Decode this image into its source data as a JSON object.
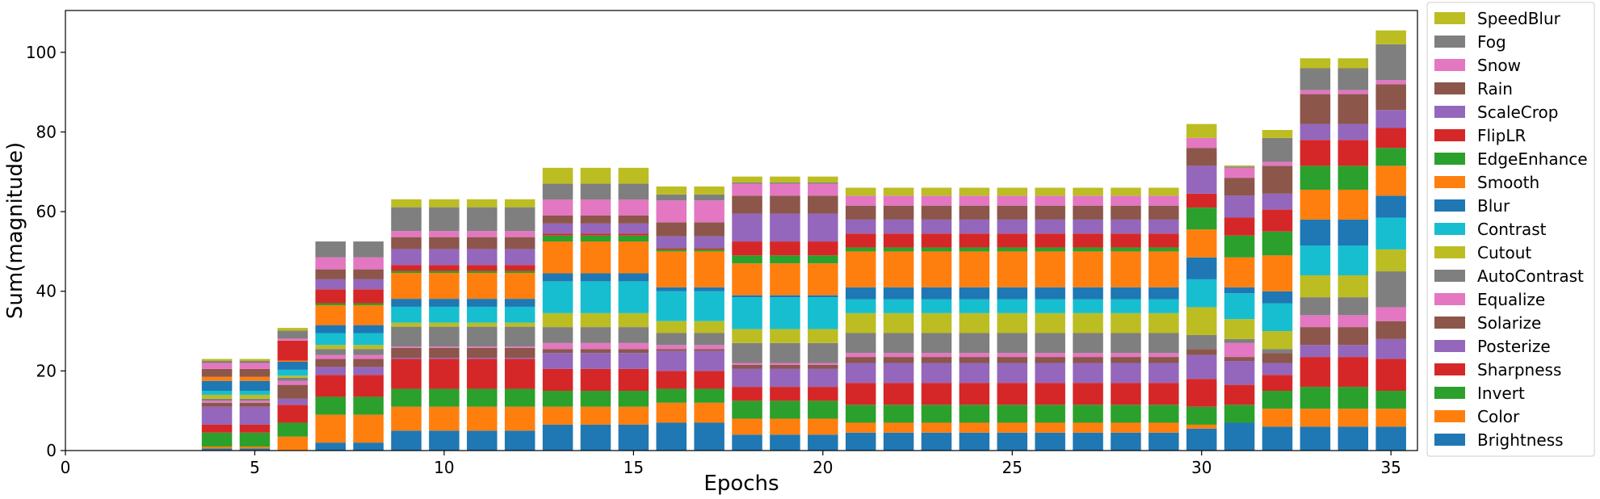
{
  "chart_data": {
    "type": "bar",
    "stacked": true,
    "xlabel": "Epochs",
    "ylabel": "Sum(magnitude)",
    "xlim": [
      0,
      35.7
    ],
    "ylim": [
      0,
      110.5
    ],
    "xticks": [
      0,
      5,
      10,
      15,
      20,
      25,
      30,
      35
    ],
    "yticks": [
      0,
      20,
      40,
      60,
      80,
      100
    ],
    "grid": false,
    "legend_position": "right",
    "x": [
      4,
      5,
      6,
      7,
      8,
      9,
      10,
      11,
      12,
      13,
      14,
      15,
      16,
      17,
      18,
      19,
      20,
      21,
      22,
      23,
      24,
      25,
      26,
      27,
      28,
      29,
      30,
      31,
      32,
      33,
      34,
      35
    ],
    "series": [
      {
        "name": "Brightness",
        "color": "#1f77b4",
        "values": [
          0.5,
          0.5,
          0,
          2,
          2,
          5,
          5,
          5,
          5,
          6.5,
          6.5,
          6.5,
          7,
          7,
          4,
          4,
          4,
          4.5,
          4.5,
          4.5,
          4.5,
          4.5,
          4.5,
          4.5,
          4.5,
          4.5,
          5.5,
          7,
          6,
          6,
          6,
          6
        ]
      },
      {
        "name": "Color",
        "color": "#ff7f0e",
        "values": [
          0.5,
          0.5,
          3.5,
          7,
          7,
          6,
          6,
          6,
          6,
          4.5,
          4.5,
          4.5,
          5,
          5,
          4,
          4,
          4,
          2.5,
          2.5,
          2.5,
          2.5,
          2.5,
          2.5,
          2.5,
          2.5,
          2.5,
          1,
          0,
          4.5,
          4.5,
          4.5,
          4.5
        ]
      },
      {
        "name": "Invert",
        "color": "#2ca02c",
        "values": [
          3.5,
          3.5,
          3.5,
          4.5,
          4.5,
          4.5,
          4.5,
          4.5,
          4.5,
          4,
          4,
          4,
          3.5,
          3.5,
          4.5,
          4.5,
          4.5,
          4.5,
          4.5,
          4.5,
          4.5,
          4.5,
          4.5,
          4.5,
          4.5,
          4.5,
          4.5,
          4.5,
          4.5,
          5.5,
          5.5,
          4.5
        ]
      },
      {
        "name": "Sharpness",
        "color": "#d62728",
        "values": [
          2,
          2,
          4.5,
          5.5,
          5.5,
          7.5,
          7.5,
          7.5,
          7.5,
          5.5,
          5.5,
          5.5,
          4.5,
          4.5,
          3.5,
          3.5,
          3.5,
          5.5,
          5.5,
          5.5,
          5.5,
          5.5,
          5.5,
          5.5,
          5.5,
          5.5,
          7,
          5,
          4,
          7.5,
          7.5,
          8
        ]
      },
      {
        "name": "Posterize",
        "color": "#9467bd",
        "values": [
          4.5,
          4.5,
          1.5,
          2,
          2,
          0.3,
          0.3,
          0.3,
          0.3,
          4,
          4,
          4,
          5,
          5,
          4.5,
          4.5,
          4.5,
          5,
          5,
          5,
          5,
          5,
          5,
          5,
          5,
          5,
          6,
          6,
          3,
          3,
          3,
          5
        ]
      },
      {
        "name": "Solarize",
        "color": "#8c564b",
        "values": [
          1,
          1,
          3.5,
          2,
          2,
          2.5,
          2.5,
          2.5,
          2.5,
          1,
          1,
          1,
          0.5,
          0.5,
          1,
          1,
          1,
          1.5,
          1.5,
          1.5,
          1.5,
          1.5,
          1.5,
          1.5,
          1.5,
          1.5,
          1.5,
          1,
          2.5,
          4.5,
          4.5,
          4.5
        ]
      },
      {
        "name": "Equalize",
        "color": "#e377c2",
        "values": [
          0.5,
          0.5,
          1,
          1,
          1,
          0.3,
          0.3,
          0.3,
          0.3,
          1.5,
          1.5,
          1.5,
          1,
          1,
          0.5,
          0.5,
          0.5,
          1,
          1,
          1,
          1,
          1,
          1,
          1,
          1,
          1,
          0,
          3.5,
          0,
          3,
          3,
          3.5
        ]
      },
      {
        "name": "AutoContrast",
        "color": "#7f7f7f",
        "values": [
          0.5,
          0.5,
          0.8,
          1.5,
          1.5,
          5,
          5,
          5,
          5,
          4,
          4,
          4,
          3,
          3,
          5,
          5,
          5,
          5,
          5,
          5,
          5,
          5,
          5,
          5,
          5,
          5,
          3.5,
          1,
          1,
          4.5,
          4.5,
          9
        ]
      },
      {
        "name": "Cutout",
        "color": "#bcbd22",
        "values": [
          1,
          1,
          0.5,
          1,
          1,
          1,
          1,
          1,
          1,
          3.5,
          3.5,
          3.5,
          3,
          3,
          3.5,
          3.5,
          3.5,
          5,
          5,
          5,
          5,
          5,
          5,
          5,
          5,
          5,
          7,
          5,
          4.5,
          5.5,
          5.5,
          5.5
        ]
      },
      {
        "name": "Contrast",
        "color": "#17becf",
        "values": [
          1,
          1,
          1.5,
          3,
          3,
          4,
          4,
          4,
          4,
          8,
          8,
          8,
          7.5,
          7.5,
          8,
          8,
          8,
          3.5,
          3.5,
          3.5,
          3.5,
          3.5,
          3.5,
          3.5,
          3.5,
          3.5,
          7,
          6.5,
          7,
          7.5,
          7.5,
          8
        ]
      },
      {
        "name": "Blur",
        "color": "#1f77b4",
        "values": [
          2.5,
          2.5,
          2,
          2,
          2,
          2,
          2,
          2,
          2,
          2,
          2,
          2,
          1,
          1,
          0.5,
          0.5,
          0.5,
          3,
          3,
          3,
          3,
          3,
          3,
          3,
          3,
          3,
          5.5,
          1.5,
          3,
          6.5,
          6.5,
          5.5
        ]
      },
      {
        "name": "Smooth",
        "color": "#ff7f0e",
        "values": [
          1,
          1,
          0.3,
          5,
          5,
          6.5,
          6.5,
          6.5,
          6.5,
          8,
          8,
          8,
          9,
          9,
          8,
          8,
          8,
          9,
          9,
          9,
          9,
          9,
          9,
          9,
          9,
          9,
          7,
          7.5,
          9,
          7.5,
          7.5,
          7.5
        ]
      },
      {
        "name": "EdgeEnhance",
        "color": "#2ca02c",
        "values": [
          0,
          0,
          0,
          0.5,
          0.5,
          0.5,
          0.5,
          0.5,
          0.5,
          1.5,
          1.5,
          1.5,
          0.5,
          0.5,
          2,
          2,
          2,
          1,
          1,
          1,
          1,
          1,
          1,
          1,
          1,
          1,
          5.5,
          5.5,
          6,
          6,
          6,
          4.5
        ]
      },
      {
        "name": "FlipLR",
        "color": "#d62728",
        "values": [
          0,
          0,
          5,
          3.5,
          3.5,
          1.5,
          1.5,
          1.5,
          1.5,
          0.5,
          0.5,
          0.5,
          0.3,
          0.3,
          3.5,
          3.5,
          3.5,
          3.5,
          3.5,
          3.5,
          3.5,
          3.5,
          3.5,
          3.5,
          3.5,
          3.5,
          3.5,
          4.5,
          5.5,
          6.5,
          6.5,
          5
        ]
      },
      {
        "name": "ScaleCrop",
        "color": "#9467bd",
        "values": [
          0,
          0,
          0,
          2.5,
          2.5,
          4,
          4,
          4,
          4,
          2.5,
          2.5,
          2.5,
          3,
          3,
          7,
          7,
          7,
          3.5,
          3.5,
          3.5,
          3.5,
          3.5,
          3.5,
          3.5,
          3.5,
          3.5,
          7,
          5.5,
          4,
          4,
          4,
          4.5
        ]
      },
      {
        "name": "Rain",
        "color": "#8c564b",
        "values": [
          2,
          2,
          0,
          2.5,
          2.5,
          3,
          3,
          3,
          3,
          2,
          2,
          2,
          3.5,
          3.5,
          4.5,
          4.5,
          4.5,
          3.5,
          3.5,
          3.5,
          3.5,
          3.5,
          3.5,
          3.5,
          3.5,
          3.5,
          4.5,
          4.5,
          7,
          7.5,
          7.5,
          6.5
        ]
      },
      {
        "name": "Snow",
        "color": "#e377c2",
        "values": [
          1.5,
          1.5,
          0.5,
          3,
          3,
          1.5,
          1.5,
          1.5,
          1.5,
          4,
          4,
          4,
          5.5,
          5.5,
          3,
          3,
          3,
          2.5,
          2.5,
          2.5,
          2.5,
          2.5,
          2.5,
          2.5,
          2.5,
          2.5,
          2.5,
          2.5,
          1,
          1,
          1,
          1
        ]
      },
      {
        "name": "Fog",
        "color": "#7f7f7f",
        "values": [
          0.5,
          0.5,
          2,
          4,
          4,
          6,
          6,
          6,
          6,
          4,
          4,
          4,
          1.5,
          1.5,
          0.3,
          0.3,
          0.3,
          0,
          0,
          0,
          0,
          0,
          0,
          0,
          0,
          0,
          0,
          0.3,
          6,
          5.5,
          5.5,
          9
        ]
      },
      {
        "name": "SpeedBlur",
        "color": "#bcbd22",
        "values": [
          0.5,
          0.5,
          0.7,
          0,
          0,
          2,
          2,
          2,
          2,
          4,
          4,
          4,
          2,
          2,
          1.5,
          1.5,
          1.5,
          2,
          2,
          2,
          2,
          2,
          2,
          2,
          2,
          2,
          3.5,
          0.3,
          2,
          2.5,
          2.5,
          3.5
        ]
      }
    ]
  }
}
